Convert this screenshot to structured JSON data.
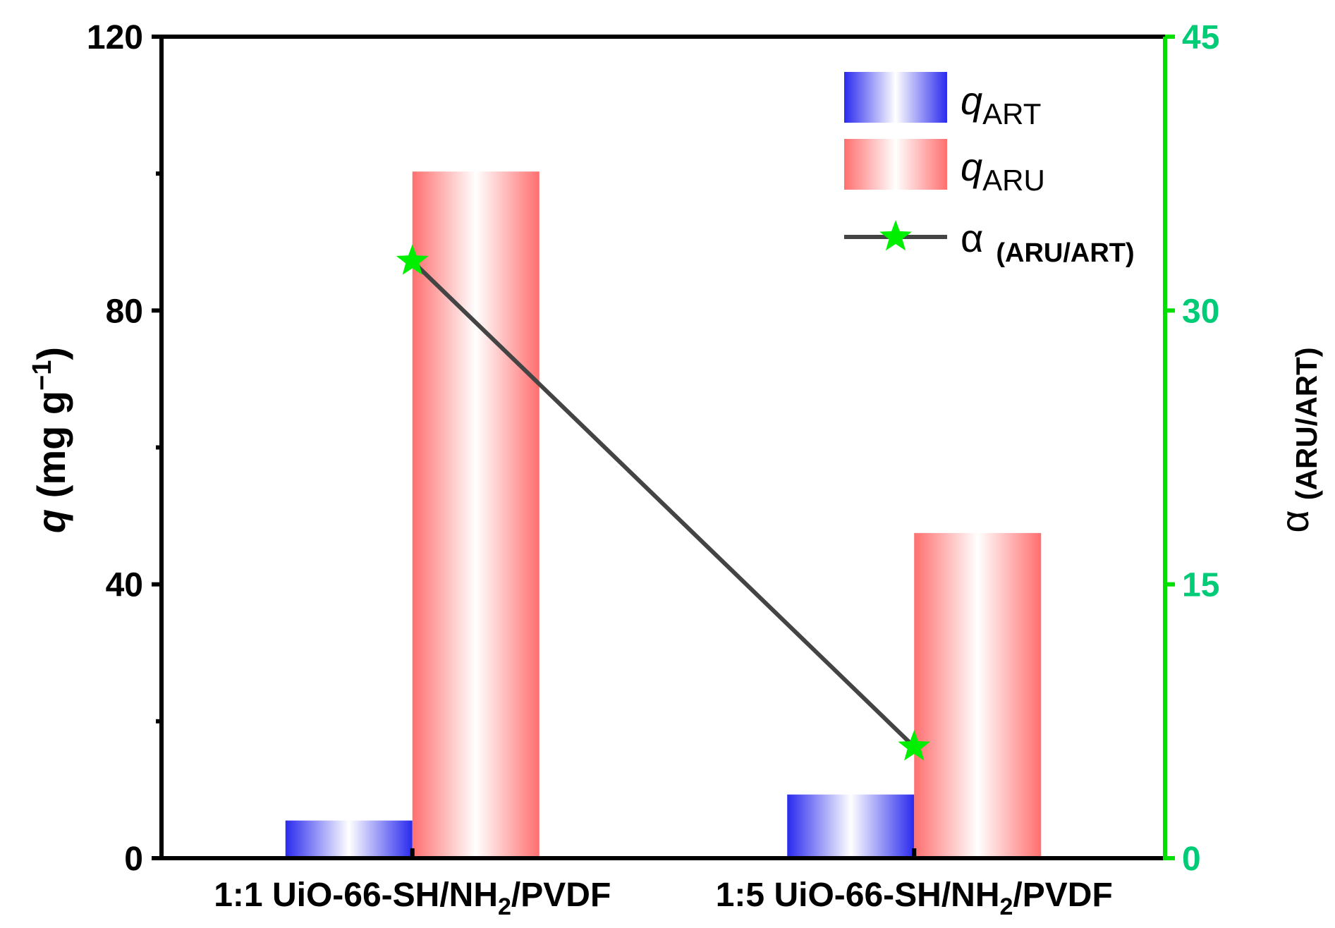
{
  "chart_data": {
    "type": "bar",
    "categories": [
      {
        "parts": [
          {
            "t": "1:1 UiO-66-SH/NH"
          },
          {
            "t": "2",
            "sub": true
          },
          {
            "t": "/PVDF"
          }
        ]
      },
      {
        "parts": [
          {
            "t": "1:5 UiO-66-SH/NH"
          },
          {
            "t": "2",
            "sub": true
          },
          {
            "t": "/PVDF"
          }
        ]
      }
    ],
    "series": [
      {
        "key": "qART",
        "name_main": "q",
        "name_sub": "ART",
        "values": [
          5.5,
          9.3
        ],
        "color": "#2a2aee",
        "axis": "left"
      },
      {
        "key": "qARU",
        "name_main": "q",
        "name_sub": "ARU",
        "values": [
          100.3,
          47.5
        ],
        "color": "#ff6f6f",
        "axis": "left"
      }
    ],
    "line_series": {
      "name_main": "α",
      "name_sub": "(ARU/ART)",
      "values": [
        32.7,
        6.1
      ],
      "line_color": "#444444",
      "marker": "star",
      "marker_color": "#00ee00"
    },
    "left_axis": {
      "label_main": "q",
      "label_rest": " (mg g",
      "label_sup": "−1",
      "label_close": ")",
      "ylim": [
        0,
        120
      ],
      "ticks": [
        "0",
        "40",
        "80",
        "120"
      ],
      "minor_ticks": [
        20,
        60,
        100
      ]
    },
    "right_axis": {
      "label_main": "α",
      "label_sub": "(ARU/ART)",
      "ylim": [
        0,
        45
      ],
      "ticks": [
        "0",
        "15",
        "30",
        "45"
      ],
      "color": "#00e000",
      "tick_text_color": "#00cc77"
    },
    "legend_position": "top-right",
    "grid": false
  }
}
